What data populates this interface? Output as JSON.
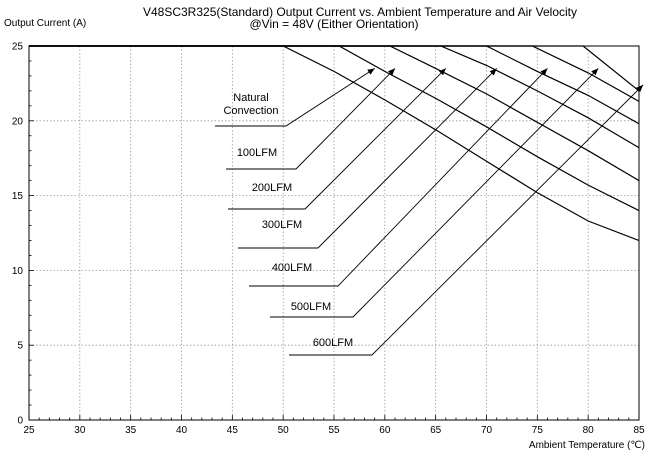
{
  "chart": {
    "title_line1": "V48SC3R325(Standard)  Output Current vs. Ambient Temperature and Air Velocity",
    "title_line2": "@Vin = 48V (Either Orientation)",
    "ylabel": "Output Current (A)",
    "xlabel": "Ambient Temperature (℃)"
  },
  "chart_data": {
    "type": "line",
    "title": "V48SC3R325(Standard)  Output Current vs. Ambient Temperature and Air Velocity @Vin = 48V (Either Orientation)",
    "xlabel": "Ambient Temperature (℃)",
    "ylabel": "Output Current (A)",
    "xlim": [
      25,
      85
    ],
    "ylim": [
      0,
      25
    ],
    "x_ticks": [
      25,
      30,
      35,
      40,
      45,
      50,
      55,
      60,
      65,
      70,
      75,
      80,
      85
    ],
    "y_ticks": [
      0,
      5,
      10,
      15,
      20,
      25
    ],
    "grid": true,
    "legend": "none (curves labeled with arrows)",
    "series": [
      {
        "name": "Natural Convection",
        "x": [
          25,
          50,
          55,
          60,
          65,
          70,
          75,
          80,
          85
        ],
        "y": [
          25,
          25,
          23.3,
          21.4,
          19.4,
          17.3,
          15.2,
          13.3,
          12
        ]
      },
      {
        "name": "100LFM",
        "x": [
          25,
          55.5,
          60,
          65,
          70,
          75,
          80,
          85
        ],
        "y": [
          25,
          25,
          23.3,
          21.5,
          19.6,
          17.6,
          15.7,
          14
        ]
      },
      {
        "name": "200LFM",
        "x": [
          25,
          60.5,
          65,
          70,
          75,
          80,
          85
        ],
        "y": [
          25,
          25,
          23.5,
          21.8,
          19.9,
          18,
          16
        ]
      },
      {
        "name": "300LFM",
        "x": [
          25,
          65.5,
          70,
          75,
          80,
          85
        ],
        "y": [
          25,
          25,
          23.7,
          22,
          20.2,
          18.2
        ]
      },
      {
        "name": "400LFM",
        "x": [
          25,
          70,
          75,
          80,
          85
        ],
        "y": [
          25,
          25,
          23.3,
          21.7,
          19.8
        ]
      },
      {
        "name": "500LFM",
        "x": [
          25,
          74.5,
          80,
          85
        ],
        "y": [
          25,
          25,
          23.2,
          21.3
        ]
      },
      {
        "name": "600LFM",
        "x": [
          25,
          79.5,
          85
        ],
        "y": [
          25,
          25,
          22
        ]
      }
    ],
    "annotations": [
      {
        "text": "Natural Convection",
        "arrow_to": [
          59,
          23.5
        ]
      },
      {
        "text": "100LFM",
        "arrow_to": [
          61,
          23.5
        ]
      },
      {
        "text": "200LFM",
        "arrow_to": [
          66,
          23.5
        ]
      },
      {
        "text": "300LFM",
        "arrow_to": [
          71,
          23.5
        ]
      },
      {
        "text": "400LFM",
        "arrow_to": [
          76,
          23.5
        ]
      },
      {
        "text": "500LFM",
        "arrow_to": [
          81,
          23.5
        ]
      },
      {
        "text": "600LFM",
        "arrow_to": [
          85.4,
          22.4
        ]
      }
    ],
    "colors": {
      "curve": "#000000",
      "grid": "#999999",
      "axis": "#000000"
    }
  }
}
